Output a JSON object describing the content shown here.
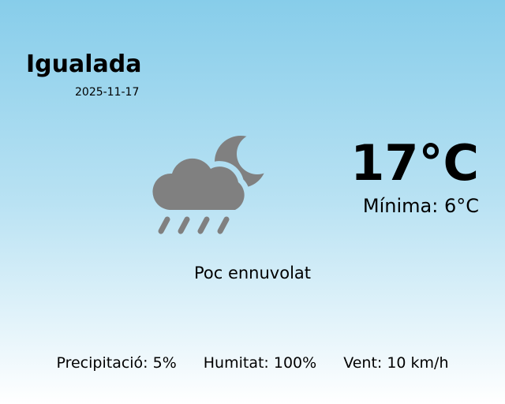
{
  "location": {
    "city": "Igualada",
    "date": "2025-11-17"
  },
  "current": {
    "temperature": "17°C",
    "minimum": "Mínima: 6°C",
    "description": "Poc ennuvolat",
    "icon": "cloud-rain-moon-icon"
  },
  "stats": {
    "precipitation": "Precipitació: 5%",
    "humidity": "Humitat: 100%",
    "wind": "Vent: 10 km/h"
  },
  "colors": {
    "icon": "#808080",
    "sky_top": "#87cdea",
    "sky_bottom": "#ffffff"
  }
}
